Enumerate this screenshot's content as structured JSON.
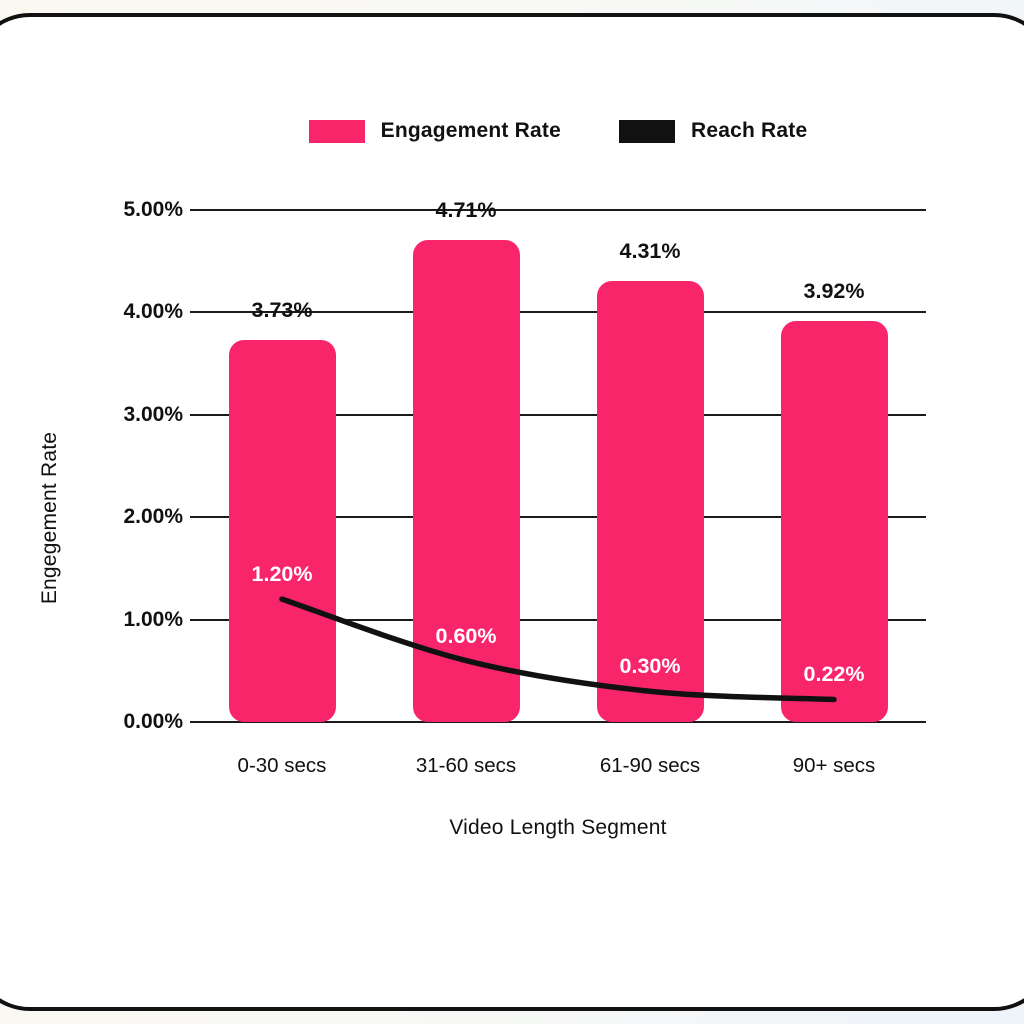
{
  "legend": {
    "items": [
      {
        "label": "Engagement Rate",
        "color": "#F9256B"
      },
      {
        "label": "Reach Rate",
        "color": "#111111"
      }
    ]
  },
  "chart_data": {
    "type": "bar",
    "categories": [
      "0-30 secs",
      "31-60 secs",
      "61-90 secs",
      "90+ secs"
    ],
    "series": [
      {
        "name": "Engagement Rate",
        "type": "bar",
        "color": "#F9256B",
        "values": [
          3.73,
          4.71,
          4.31,
          3.92
        ],
        "data_labels": [
          "3.73%",
          "4.71%",
          "4.31%",
          "3.92%"
        ]
      },
      {
        "name": "Reach Rate",
        "type": "line",
        "color": "#111111",
        "values": [
          1.2,
          0.6,
          0.3,
          0.22
        ],
        "data_labels": [
          "1.20%",
          "0.60%",
          "0.30%",
          "0.22%"
        ]
      }
    ],
    "xlabel": "Video Length Segment",
    "ylabel": "Engegement Rate",
    "ylim": [
      0,
      5
    ],
    "y_tick_labels": [
      "5.00%",
      "4.00%",
      "3.00%",
      "2.00%",
      "1.00%",
      "0.00%"
    ],
    "grid": true,
    "legend_position": "top"
  },
  "style": {
    "grid_color": "#1b1b1b",
    "frame_border_color": "#111111",
    "plot_background": "#ffffff"
  }
}
